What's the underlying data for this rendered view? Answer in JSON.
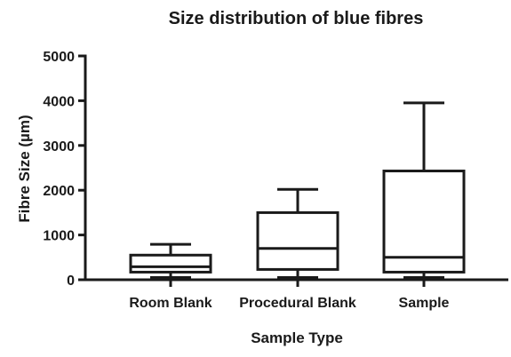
{
  "chart_data": {
    "type": "boxplot",
    "title": "Size distribution of blue fibres",
    "xlabel": "Sample Type",
    "ylabel": "Fibre Size (µm)",
    "ylim": [
      0,
      5000
    ],
    "yticks": [
      0,
      1000,
      2000,
      3000,
      4000,
      5000
    ],
    "grid": false,
    "categories": [
      "Room Blank",
      "Procedural Blank",
      "Sample"
    ],
    "boxes": [
      {
        "category": "Room Blank",
        "min": 50,
        "q1": 170,
        "median": 290,
        "q3": 550,
        "max": 790
      },
      {
        "category": "Procedural Blank",
        "min": 50,
        "q1": 230,
        "median": 700,
        "q3": 1500,
        "max": 2020
      },
      {
        "category": "Sample",
        "min": 50,
        "q1": 170,
        "median": 500,
        "q3": 2430,
        "max": 3950
      }
    ]
  }
}
